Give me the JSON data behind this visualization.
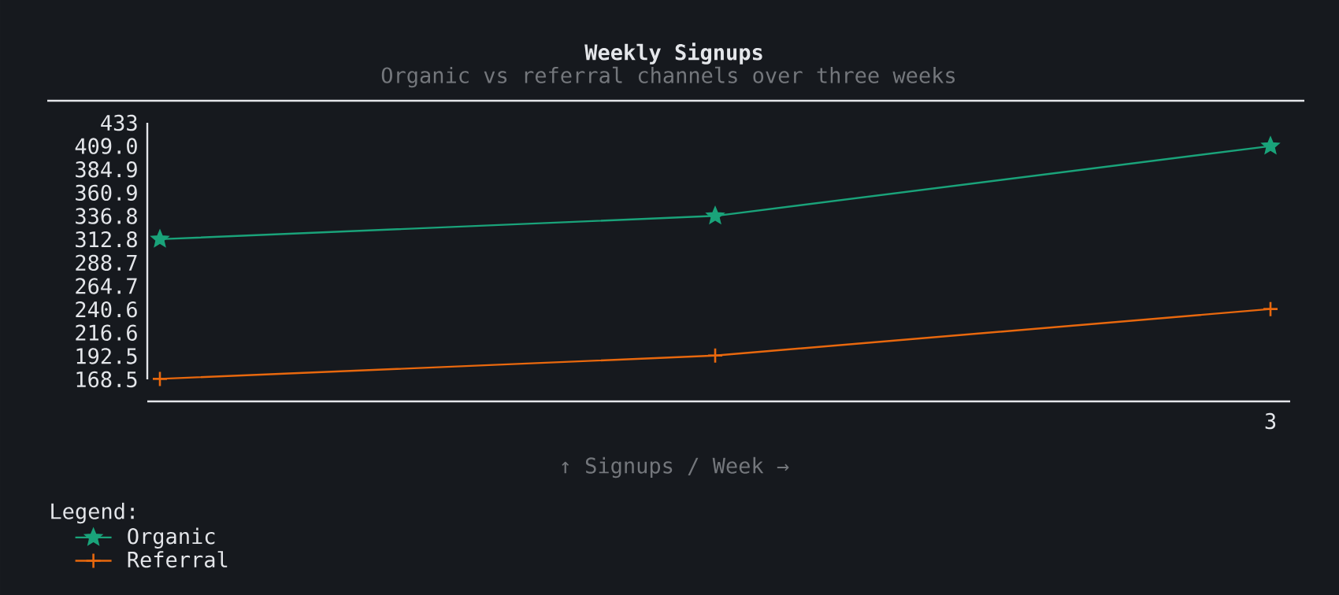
{
  "chart_data": {
    "type": "line",
    "title": "Weekly Signups",
    "subtitle": "Organic vs referral channels over three weeks",
    "xlabel": "↑ Signups / Week →",
    "legend_title": "Legend:",
    "categories": [
      null,
      null,
      "3"
    ],
    "series": [
      {
        "name": "Organic",
        "color": "#1aa37a",
        "marker": "star",
        "values": [
          313,
          337,
          409
        ]
      },
      {
        "name": "Referral",
        "color": "#e8680e",
        "marker": "cross",
        "values": [
          169,
          193,
          241
        ]
      }
    ],
    "ylim": [
      168.5,
      433
    ],
    "yticks": [
      168.5,
      192.5,
      216.6,
      240.6,
      264.7,
      288.7,
      312.8,
      336.8,
      360.9,
      384.9,
      {
        "value": 409.0,
        "label": "409.0"
      },
      433
    ],
    "legend": "bottom left"
  }
}
